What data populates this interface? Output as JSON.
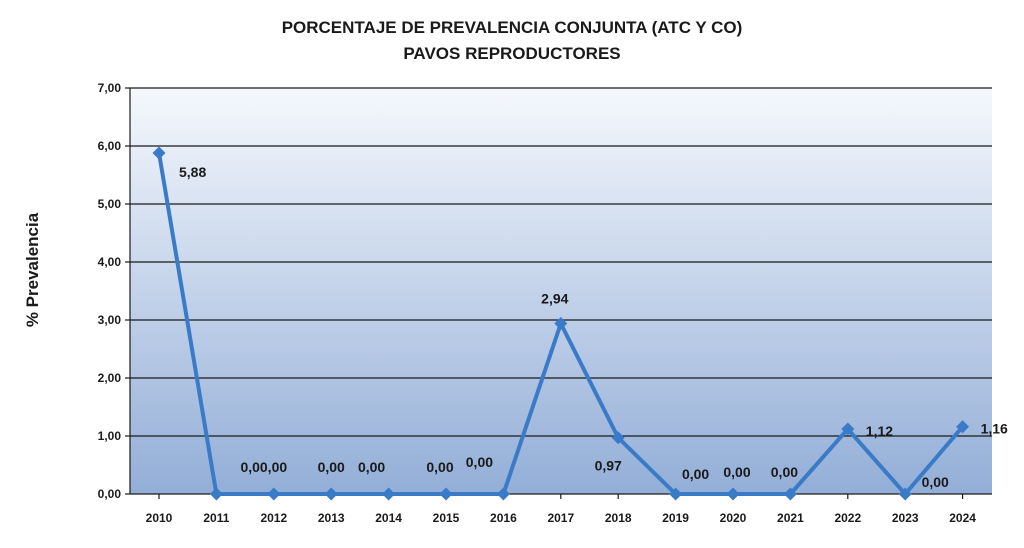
{
  "chart_data": {
    "type": "line",
    "title": [
      "PORCENTAJE DE PREVALENCIA CONJUNTA (ATC Y CO)",
      "PAVOS REPRODUCTORES"
    ],
    "xlabel": "",
    "ylabel": "% Prevalencia",
    "ylim": [
      0,
      7
    ],
    "yticks": [
      "0,00",
      "1,00",
      "2,00",
      "3,00",
      "4,00",
      "5,00",
      "6,00",
      "7,00"
    ],
    "grid": true,
    "categories": [
      "2010",
      "2011",
      "2012",
      "2013",
      "2014",
      "2015",
      "2016",
      "2017",
      "2018",
      "2019",
      "2020",
      "2021",
      "2022",
      "2023",
      "2024"
    ],
    "series": [
      {
        "name": "",
        "color": "#3a7bc8",
        "values": [
          5.88,
          0.0,
          0.0,
          0.0,
          0.0,
          0.0,
          0.0,
          2.94,
          0.97,
          0.0,
          0.0,
          0.0,
          1.12,
          0.0,
          1.16
        ],
        "labels": [
          "5,88",
          "",
          "0,00,00",
          "0,00",
          "0,00",
          "0,00",
          "0,00",
          "2,94",
          "0,97",
          "0,00",
          "0,00",
          "0,00",
          "1,12",
          "0,00",
          "1,16"
        ]
      }
    ],
    "colors": {
      "plot_top": "#f5f8fd",
      "plot_bottom": "#93aed7",
      "line": "#3a7bc8"
    }
  }
}
